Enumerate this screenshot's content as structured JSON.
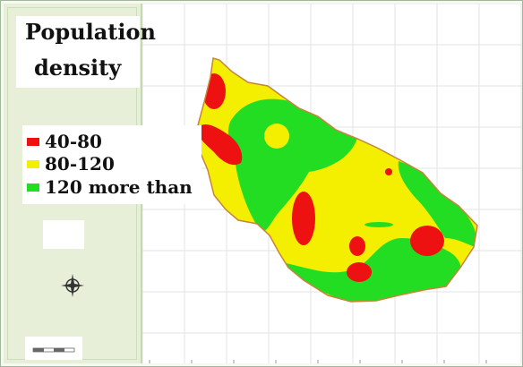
{
  "legend": {
    "title_line1": "Population",
    "title_line2": "density",
    "items": [
      {
        "label": "40-80",
        "color": "#ee1111"
      },
      {
        "label": "80-120",
        "color": "#f4ef00"
      },
      {
        "label": "120 more than",
        "color": "#22dd22"
      }
    ]
  },
  "icons": {
    "compass": "compass-rose-icon",
    "scale": "scale-bar-icon"
  },
  "colors": {
    "boundary": "#c8843a",
    "grid": "#e3e3e3",
    "panel": "#e7efd9"
  }
}
